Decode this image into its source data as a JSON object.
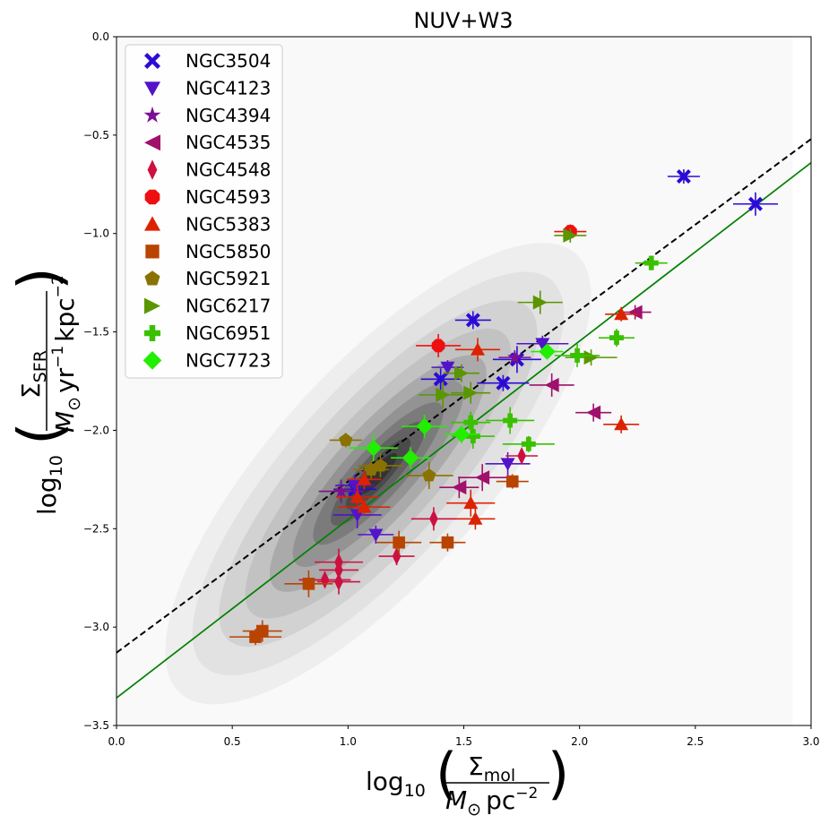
{
  "chart_data": {
    "type": "scatter",
    "title": "NUV+W3",
    "xlabel": {
      "prefix": "log",
      "base": "10",
      "num": "Σ",
      "num_sub": "mol",
      "den_main": "M",
      "den_sub": "⊙",
      "den_unit": "pc",
      "den_exp": "−2"
    },
    "ylabel": {
      "prefix": "log",
      "base": "10",
      "num": "Σ",
      "num_sub": "SFR",
      "den_main": "M",
      "den_sub": "⊙",
      "den_unit": "yr",
      "den_unit_exp": "−1",
      "den_unit2": "kpc",
      "den_exp": "−2"
    },
    "xlim": [
      0.0,
      3.0
    ],
    "ylim": [
      -3.5,
      0.0
    ],
    "xticks": [
      "0.0",
      "0.5",
      "1.0",
      "1.5",
      "2.0",
      "2.5",
      "3.0"
    ],
    "yticks": [
      "0.0",
      "−0.5",
      "−1.0",
      "−1.5",
      "−2.0",
      "−2.5",
      "−3.0",
      "−3.5"
    ],
    "legend_position": "upper-left",
    "lines": [
      {
        "name": "reference-dashed",
        "style": "dashed",
        "color": "#000000",
        "x": [
          0.0,
          3.0
        ],
        "y": [
          -3.13,
          -0.52
        ]
      },
      {
        "name": "fit-solid",
        "style": "solid",
        "color": "#008000",
        "x": [
          0.0,
          3.0
        ],
        "y": [
          -3.36,
          -0.64
        ]
      }
    ],
    "density_background": {
      "color": "#888888",
      "center": [
        1.0,
        -2.3
      ]
    },
    "series": [
      {
        "name": "NGC3504",
        "marker": "X",
        "color": "#2a0bd6",
        "points": [
          [
            2.45,
            -0.71
          ],
          [
            2.76,
            -0.85
          ],
          [
            1.54,
            -1.44
          ],
          [
            1.73,
            -1.64
          ],
          [
            1.4,
            -1.74
          ],
          [
            1.67,
            -1.76
          ],
          [
            1.03,
            -2.3
          ]
        ]
      },
      {
        "name": "NGC4123",
        "marker": "v",
        "color": "#5214c8",
        "points": [
          [
            1.43,
            -1.68
          ],
          [
            1.69,
            -2.17
          ],
          [
            1.12,
            -2.53
          ],
          [
            1.04,
            -2.43
          ],
          [
            1.03,
            -2.28
          ],
          [
            1.84,
            -1.56
          ]
        ]
      },
      {
        "name": "NGC4394",
        "marker": "*",
        "color": "#7a1092",
        "points": [
          [
            1.72,
            -1.63
          ],
          [
            0.97,
            -2.31
          ]
        ]
      },
      {
        "name": "NGC4535",
        "marker": "<",
        "color": "#a0106c",
        "points": [
          [
            2.24,
            -1.4
          ],
          [
            1.88,
            -1.77
          ],
          [
            2.06,
            -1.91
          ],
          [
            1.58,
            -2.24
          ],
          [
            1.48,
            -2.29
          ]
        ]
      },
      {
        "name": "NGC4548",
        "marker": "d",
        "color": "#cc1040",
        "points": [
          [
            1.75,
            -2.13
          ],
          [
            1.37,
            -2.45
          ],
          [
            1.21,
            -2.64
          ],
          [
            0.96,
            -2.67
          ],
          [
            0.96,
            -2.71
          ],
          [
            0.9,
            -2.76
          ],
          [
            0.96,
            -2.77
          ]
        ]
      },
      {
        "name": "NGC4593",
        "marker": "o",
        "color": "#ee1010",
        "points": [
          [
            1.96,
            -0.99
          ],
          [
            1.39,
            -1.57
          ]
        ]
      },
      {
        "name": "NGC5383",
        "marker": "^",
        "color": "#dd2200",
        "points": [
          [
            2.18,
            -1.41
          ],
          [
            1.56,
            -1.59
          ],
          [
            2.18,
            -1.97
          ],
          [
            1.53,
            -2.37
          ],
          [
            1.55,
            -2.45
          ],
          [
            1.07,
            -2.39
          ],
          [
            1.04,
            -2.34
          ],
          [
            1.07,
            -2.25
          ]
        ]
      },
      {
        "name": "NGC5850",
        "marker": "s",
        "color": "#b84400",
        "points": [
          [
            1.71,
            -2.26
          ],
          [
            1.22,
            -2.57
          ],
          [
            1.43,
            -2.57
          ],
          [
            0.83,
            -2.78
          ],
          [
            0.63,
            -3.02
          ],
          [
            0.6,
            -3.05
          ]
        ]
      },
      {
        "name": "NGC5921",
        "marker": "p",
        "color": "#8a7200",
        "points": [
          [
            0.99,
            -2.05
          ],
          [
            1.14,
            -2.18
          ],
          [
            1.1,
            -2.2
          ],
          [
            1.35,
            -2.23
          ]
        ]
      },
      {
        "name": "NGC6217",
        "marker": ">",
        "color": "#5a9600",
        "points": [
          [
            1.96,
            -1.01
          ],
          [
            1.83,
            -1.35
          ],
          [
            1.49,
            -1.71
          ],
          [
            1.41,
            -1.82
          ],
          [
            1.53,
            -1.81
          ],
          [
            2.05,
            -1.63
          ]
        ]
      },
      {
        "name": "NGC6951",
        "marker": "P",
        "color": "#3ac000",
        "points": [
          [
            2.31,
            -1.15
          ],
          [
            1.99,
            -1.62
          ],
          [
            2.16,
            -1.53
          ],
          [
            1.7,
            -1.95
          ],
          [
            1.53,
            -1.96
          ],
          [
            1.78,
            -2.07
          ],
          [
            1.54,
            -2.03
          ]
        ]
      },
      {
        "name": "NGC7723",
        "marker": "D",
        "color": "#22ee00",
        "points": [
          [
            1.86,
            -1.6
          ],
          [
            1.33,
            -1.98
          ],
          [
            1.49,
            -2.02
          ],
          [
            1.11,
            -2.09
          ],
          [
            1.27,
            -2.14
          ]
        ]
      }
    ]
  }
}
